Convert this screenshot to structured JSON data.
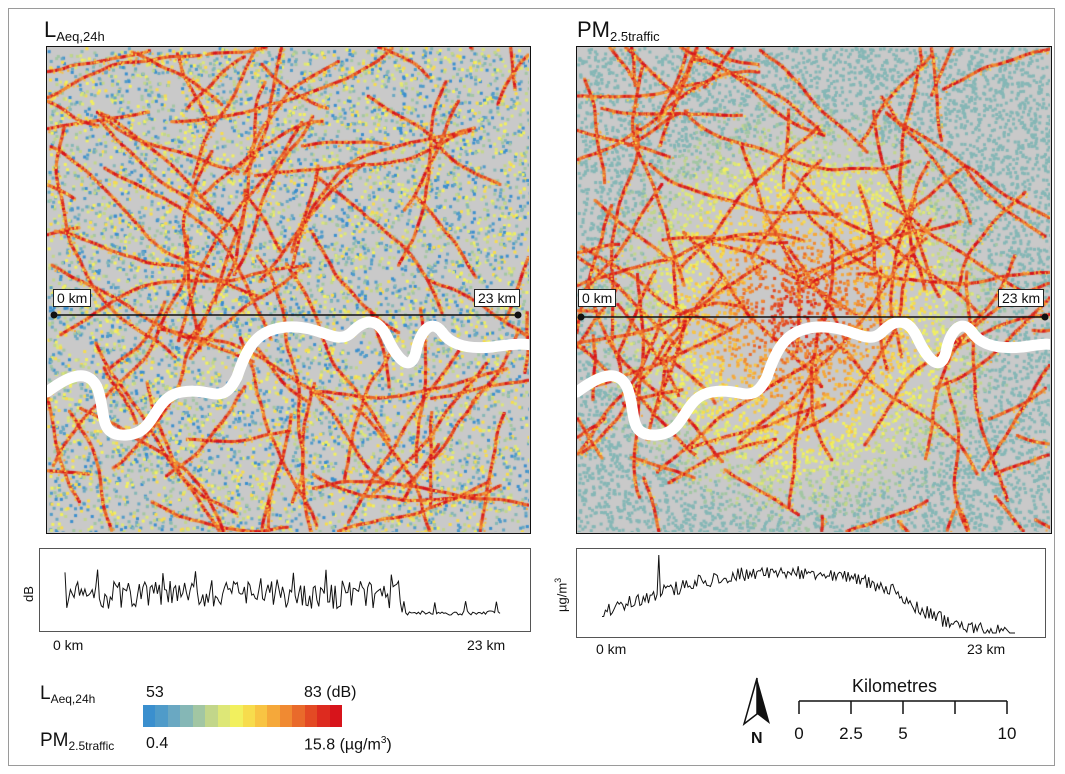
{
  "left_panel": {
    "title_main": "L",
    "title_sub": "Aeq,24h",
    "start_label": "0 km",
    "end_label": "23 km"
  },
  "right_panel": {
    "title_main": "PM",
    "title_sub": "2.5traffic",
    "start_label": "0 km",
    "end_label": "23 km"
  },
  "left_profile": {
    "ylabel": "dB",
    "x_start": "0 km",
    "x_end": "23 km"
  },
  "right_profile": {
    "ylabel_main": "µg/m",
    "ylabel_sup": "3",
    "x_start": "0 km",
    "x_end": "23 km"
  },
  "legend": {
    "noise_label_main": "L",
    "noise_label_sub": "Aeq,24h",
    "noise_min": "53",
    "noise_max": "83 (dB)",
    "pm_label_main": "PM",
    "pm_label_sub": "2.5traffic",
    "pm_min": "0.4",
    "pm_max_main": "15.8 (µg/m",
    "pm_max_sup": "3",
    "pm_max_close": ")",
    "colors": [
      "#3a8fce",
      "#4f9bc9",
      "#6aa8c2",
      "#85b7b6",
      "#a2c6a3",
      "#c2d68a",
      "#dde777",
      "#f2f05e",
      "#f7dc4d",
      "#f8c443",
      "#f5a83a",
      "#f08a32",
      "#e96a2b",
      "#e34a24",
      "#dd2b1f",
      "#d7141b"
    ]
  },
  "scalebar": {
    "title": "Kilometres",
    "ticks": [
      "0",
      "2.5",
      "5",
      "10"
    ]
  },
  "north_arrow": {
    "label": "N"
  }
}
